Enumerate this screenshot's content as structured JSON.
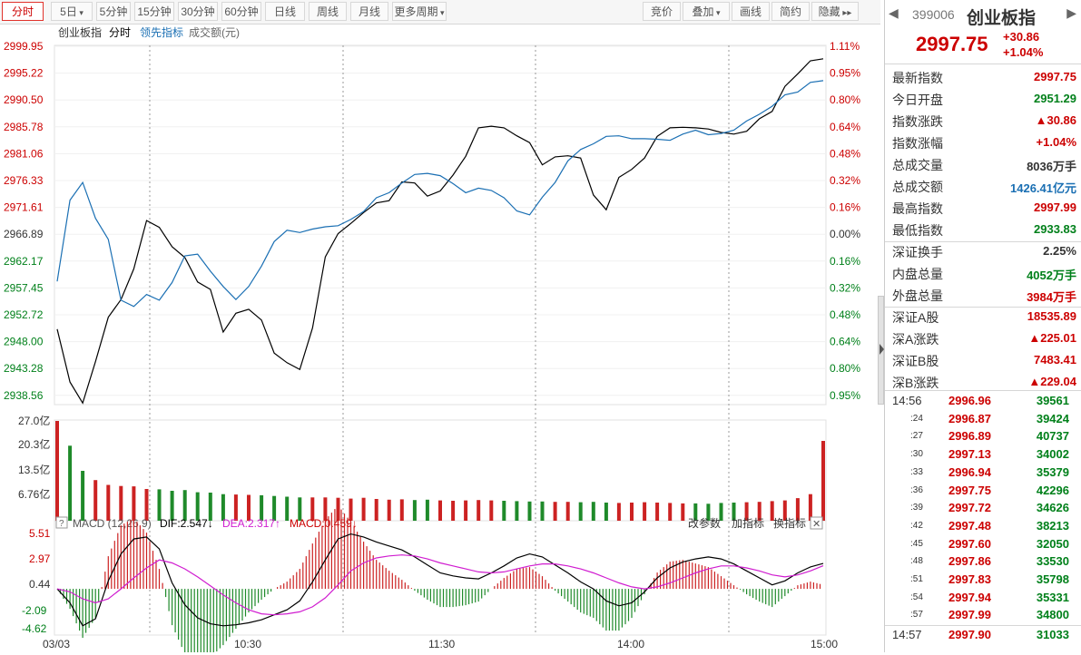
{
  "toolbar": {
    "periods": [
      {
        "label": "分时",
        "active": true
      },
      {
        "label": "5日",
        "dropdown": true
      },
      {
        "label": "5分钟"
      },
      {
        "label": "15分钟"
      },
      {
        "label": "30分钟"
      },
      {
        "label": "60分钟"
      },
      {
        "label": "日线"
      },
      {
        "label": "周线"
      },
      {
        "label": "月线"
      },
      {
        "label": "更多周期",
        "dropdown": true
      }
    ],
    "tools": [
      {
        "label": "竞价"
      },
      {
        "label": "叠加",
        "dropdown": true
      },
      {
        "label": "画线"
      },
      {
        "label": "简约"
      },
      {
        "label": "隐藏",
        "arrows": "▸▸"
      }
    ]
  },
  "price_chart": {
    "legend": [
      {
        "text": "创业板指",
        "color": "#333333"
      },
      {
        "text": "分时",
        "color": "#000000"
      },
      {
        "text": "领先指标",
        "color": "#1a6fb3"
      },
      {
        "text": "成交额(元)",
        "color": "#666666"
      }
    ],
    "left_axis": [
      "2999.95",
      "2995.22",
      "2990.50",
      "2985.78",
      "2981.06",
      "2976.33",
      "2971.61",
      "2966.89",
      "2962.17",
      "2957.45",
      "2952.72",
      "2948.00",
      "2943.28",
      "2938.56"
    ],
    "right_axis": [
      "1.11%",
      "0.95%",
      "0.80%",
      "0.64%",
      "0.48%",
      "0.32%",
      "0.16%",
      "0.00%",
      "0.16%",
      "0.32%",
      "0.48%",
      "0.64%",
      "0.80%",
      "0.95%"
    ],
    "colors": {
      "up": "#cc0000",
      "down": "#00801a",
      "flat": "#333333",
      "price_line": "#000000",
      "lead_line": "#1a6fb3"
    }
  },
  "volume_chart": {
    "axis": [
      "27.0亿",
      "20.3亿",
      "13.5亿",
      "6.76亿"
    ]
  },
  "macd": {
    "question_icon": "?",
    "title": "MACD (12,26,9)",
    "dif": "DIF:2.547↓",
    "dea": "DEA:2.317↑",
    "macd": "MACD:0.459↓",
    "actions": [
      "改参数",
      "加指标",
      "换指标"
    ],
    "close_icon": "✕",
    "axis": [
      "5.51",
      "2.97",
      "0.44",
      "-2.09",
      "-4.62"
    ],
    "colors": {
      "dif": "#000000",
      "dea": "#d01dd0"
    }
  },
  "x_axis": [
    "03/03",
    "10:30",
    "11:30",
    "14:00",
    "15:00"
  ],
  "quote": {
    "code": "399006",
    "name": "创业板指",
    "price": "2997.75",
    "change": "+30.86",
    "change_pct": "+1.04%",
    "rows": [
      {
        "label": "最新指数",
        "value": "2997.75",
        "color": "#cc0000"
      },
      {
        "label": "今日开盘",
        "value": "2951.29",
        "color": "#00801a"
      },
      {
        "label": "指数涨跌",
        "value": "▲30.86",
        "color": "#cc0000"
      },
      {
        "label": "指数涨幅",
        "value": "+1.04%",
        "color": "#cc0000"
      },
      {
        "label": "总成交量",
        "value": "8036万手",
        "color": "#333333"
      },
      {
        "label": "总成交额",
        "value": "1426.41亿元",
        "color": "#1a6fb3"
      },
      {
        "label": "最高指数",
        "value": "2997.99",
        "color": "#cc0000"
      },
      {
        "label": "最低指数",
        "value": "2933.83",
        "color": "#00801a"
      }
    ],
    "rows2": [
      {
        "label": "深证换手",
        "value": "2.25%",
        "color": "#333333"
      },
      {
        "label": "内盘总量",
        "value": "4052万手",
        "color": "#00801a"
      },
      {
        "label": "外盘总量",
        "value": "3984万手",
        "color": "#cc0000"
      }
    ],
    "rows3": [
      {
        "label": "深证A股",
        "value": "18535.89",
        "color": "#cc0000"
      },
      {
        "label": "深A涨跌",
        "value": "▲225.01",
        "color": "#cc0000"
      },
      {
        "label": "深证B股",
        "value": "7483.41",
        "color": "#cc0000"
      },
      {
        "label": "深B涨跌",
        "value": "▲229.04",
        "color": "#cc0000"
      }
    ]
  },
  "trades": [
    {
      "time": "14:56",
      "price": "2996.96",
      "vol": "39561"
    },
    {
      "time": ":24",
      "price": "2996.87",
      "vol": "39424"
    },
    {
      "time": ":27",
      "price": "2996.89",
      "vol": "40737"
    },
    {
      "time": ":30",
      "price": "2997.13",
      "vol": "34002"
    },
    {
      "time": ":33",
      "price": "2996.94",
      "vol": "35379"
    },
    {
      "time": ":36",
      "price": "2997.75",
      "vol": "42296"
    },
    {
      "time": ":39",
      "price": "2997.72",
      "vol": "34626"
    },
    {
      "time": ":42",
      "price": "2997.48",
      "vol": "38213"
    },
    {
      "time": ":45",
      "price": "2997.60",
      "vol": "32050"
    },
    {
      "time": ":48",
      "price": "2997.86",
      "vol": "33530"
    },
    {
      "time": ":51",
      "price": "2997.83",
      "vol": "35798"
    },
    {
      "time": ":54",
      "price": "2997.94",
      "vol": "35331"
    },
    {
      "time": ":57",
      "price": "2997.99",
      "vol": "34800"
    },
    {
      "time": "14:57",
      "price": "2997.90",
      "vol": "31033"
    }
  ],
  "chart_data": {
    "type": "line",
    "title": "创业板指 分时",
    "x_ticks": [
      "03/03",
      "10:30",
      "11:30",
      "14:00",
      "15:00"
    ],
    "ylim": [
      2933.83,
      2999.95
    ],
    "series": [
      {
        "name": "分时",
        "values": [
          2950.2,
          2940.9,
          2937.2,
          2944.5,
          2952.3,
          2955.4,
          2960.8,
          2969.3,
          2968.1,
          2964.7,
          2962.8,
          2958.5,
          2957.2,
          2949.7,
          2953.0,
          2953.7,
          2951.8,
          2946.0,
          2944.3,
          2943.1,
          2950.4,
          2962.9,
          2967.0,
          2968.8,
          2970.7,
          2972.4,
          2972.8,
          2976.1,
          2975.9,
          2973.6,
          2974.5,
          2977.3,
          2980.6,
          2985.6,
          2985.9,
          2985.6,
          2984.2,
          2983.0,
          2979.1,
          2980.5,
          2980.7,
          2980.3,
          2973.8,
          2971.2,
          2976.9,
          2978.3,
          2980.3,
          2984.1,
          2985.6,
          2985.7,
          2985.6,
          2985.4,
          2984.8,
          2984.5,
          2985.0,
          2987.2,
          2988.5,
          2992.9,
          2995.1,
          2997.4,
          2997.75
        ]
      },
      {
        "name": "领先指标",
        "values": [
          2958.6,
          2972.9,
          2976.0,
          2969.7,
          2966.0,
          2955.3,
          2954.2,
          2956.3,
          2955.3,
          2958.4,
          2963.1,
          2963.4,
          2960.4,
          2957.7,
          2955.4,
          2957.7,
          2961.3,
          2965.6,
          2967.6,
          2967.2,
          2967.8,
          2968.2,
          2968.4,
          2969.5,
          2970.9,
          2973.3,
          2974.2,
          2975.9,
          2977.4,
          2977.6,
          2977.2,
          2975.8,
          2974.2,
          2975.0,
          2974.6,
          2973.3,
          2971.0,
          2970.3,
          2973.4,
          2976.0,
          2979.8,
          2981.8,
          2982.8,
          2984.1,
          2984.2,
          2983.7,
          2983.7,
          2983.6,
          2983.4,
          2984.5,
          2985.2,
          2984.4,
          2984.6,
          2985.2,
          2986.8,
          2988.0,
          2989.4,
          2991.4,
          2991.9,
          2993.6,
          2993.9
        ]
      }
    ],
    "volume_yi": [
      27.0,
      20.3,
      13.5,
      11.0,
      9.7,
      9.4,
      9.3,
      8.6,
      8.5,
      8.1,
      8.3,
      7.7,
      7.6,
      7.2,
      7.1,
      7.0,
      6.9,
      6.7,
      6.5,
      6.3,
      6.3,
      6.3,
      6.2,
      6.0,
      6.2,
      5.9,
      5.7,
      5.8,
      5.6,
      5.7,
      5.5,
      5.4,
      5.5,
      5.6,
      5.5,
      5.4,
      5.3,
      5.2,
      5.2,
      5.1,
      5.1,
      5.0,
      5.1,
      4.9,
      4.8,
      4.9,
      5.0,
      4.9,
      4.8,
      4.7,
      4.7,
      4.6,
      4.8,
      4.9,
      5.0,
      5.1,
      5.3,
      5.5,
      6.1,
      7.2,
      21.6
    ],
    "macd_series": {
      "dif": [
        0.0,
        -1.4,
        -3.7,
        -3.0,
        0.8,
        3.5,
        5.0,
        5.2,
        4.0,
        0.6,
        -1.6,
        -2.9,
        -3.5,
        -3.7,
        -3.6,
        -3.4,
        -3.1,
        -2.6,
        -2.1,
        -1.2,
        0.7,
        2.9,
        5.0,
        5.5,
        5.2,
        4.7,
        4.3,
        3.9,
        3.2,
        2.4,
        1.6,
        1.3,
        1.1,
        1.0,
        1.6,
        2.3,
        3.1,
        3.5,
        3.2,
        2.4,
        1.6,
        0.7,
        0.0,
        -1.2,
        -1.7,
        -1.4,
        -0.3,
        1.1,
        2.1,
        2.7,
        3.0,
        3.2,
        3.0,
        2.5,
        1.8,
        1.1,
        0.4,
        0.8,
        1.6,
        2.2,
        2.547
      ],
      "dea": [
        0.0,
        -0.3,
        -1.0,
        -1.4,
        -1.0,
        0.0,
        1.1,
        2.1,
        2.9,
        2.6,
        2.0,
        1.2,
        0.3,
        -0.6,
        -1.4,
        -2.1,
        -2.5,
        -2.6,
        -2.5,
        -2.3,
        -1.8,
        -0.9,
        0.4,
        1.8,
        2.6,
        3.1,
        3.3,
        3.4,
        3.3,
        3.0,
        2.6,
        2.3,
        2.0,
        1.7,
        1.6,
        1.7,
        2.0,
        2.3,
        2.5,
        2.5,
        2.3,
        2.0,
        1.6,
        1.1,
        0.6,
        0.2,
        0.0,
        0.2,
        0.6,
        1.1,
        1.6,
        2.0,
        2.3,
        2.3,
        2.1,
        1.8,
        1.4,
        1.2,
        1.4,
        1.8,
        2.317
      ]
    }
  }
}
